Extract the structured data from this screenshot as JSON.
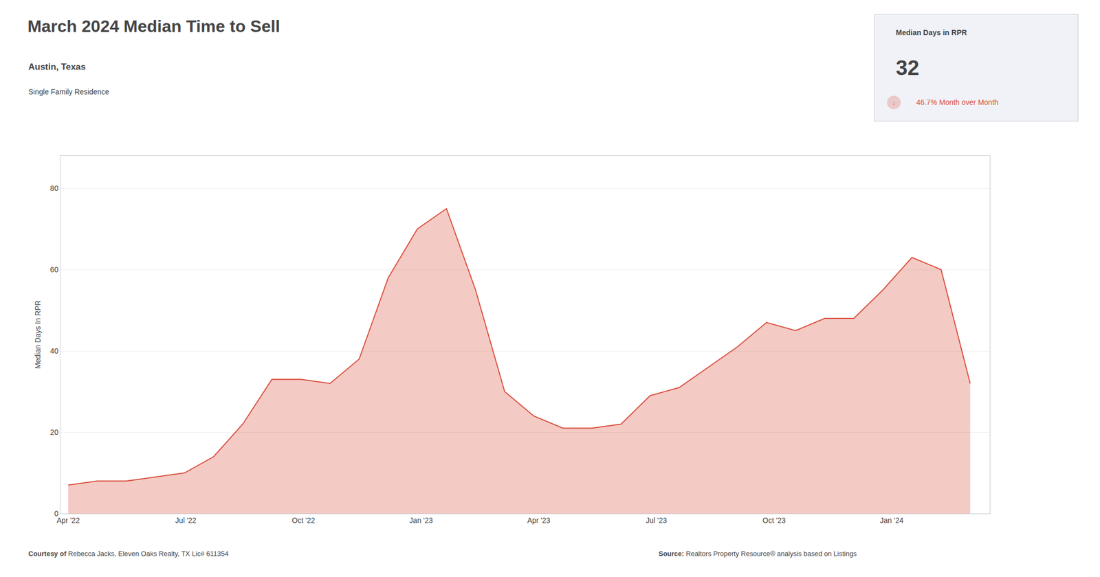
{
  "chart_data": {
    "type": "area",
    "title": "March 2024 Median Time to Sell",
    "subtitle": "Austin, Texas",
    "annotations": [
      "Single Family Residence",
      "Median Days in RPR",
      "32",
      "↓",
      " 46.7% Month over Month",
      "Courtesy of",
      " Rebecca Jacks, Eleven Oaks Realty, TX Lic# 611354",
      "Source:",
      " Realtors Property Resource® analysis based on Listings"
    ],
    "ylabel": "Median Days In RPR",
    "x": [
      0,
      0.7419354838709677,
      1.4838709677419355,
      2.225806451612903,
      2.967741935483871,
      3.7096774193548385,
      4.451612903225806,
      5.193548387096774,
      5.935483870967742,
      6.67741935483871,
      7.419354838709677,
      8.161290322580644,
      8.903225806451612,
      9.64516129032258,
      10.387096774193548,
      11.129032258064516,
      11.870967741935484,
      12.612903225806452,
      13.35483870967742,
      14.096774193548386,
      14.838709677419356,
      15.580645161290322,
      16.32258064516129,
      17.06451612903226,
      17.806451612903228,
      18.548387096774196,
      19.29032258064516,
      20.032258064516128,
      20.774193548387096,
      21.516129032258064,
      22.258064516129032,
      23
    ],
    "values": [
      7,
      8,
      8,
      9,
      10,
      14,
      22,
      33,
      33,
      32,
      38,
      58,
      70,
      75,
      55,
      30,
      24,
      21,
      21,
      22,
      29,
      31,
      36,
      41,
      47,
      45,
      48,
      48,
      55,
      63,
      60,
      32
    ],
    "color": "#d94f3d",
    "xlim": [
      -0.2,
      23.5
    ],
    "xticks": [
      {
        "value": 0,
        "label": "Apr '22"
      },
      {
        "value": 3,
        "label": "Jul '22"
      },
      {
        "value": 6,
        "label": "Oct '22"
      },
      {
        "value": 9,
        "label": "Jan '23"
      },
      {
        "value": 12,
        "label": "Apr '23"
      },
      {
        "value": 15,
        "label": "Jul '23"
      },
      {
        "value": 18,
        "label": "Oct '23"
      },
      {
        "value": 21,
        "label": "Jan '24"
      }
    ],
    "ylim": [
      0,
      88
    ],
    "yticks": [
      0,
      20,
      40,
      60,
      80
    ],
    "grid": true
  }
}
